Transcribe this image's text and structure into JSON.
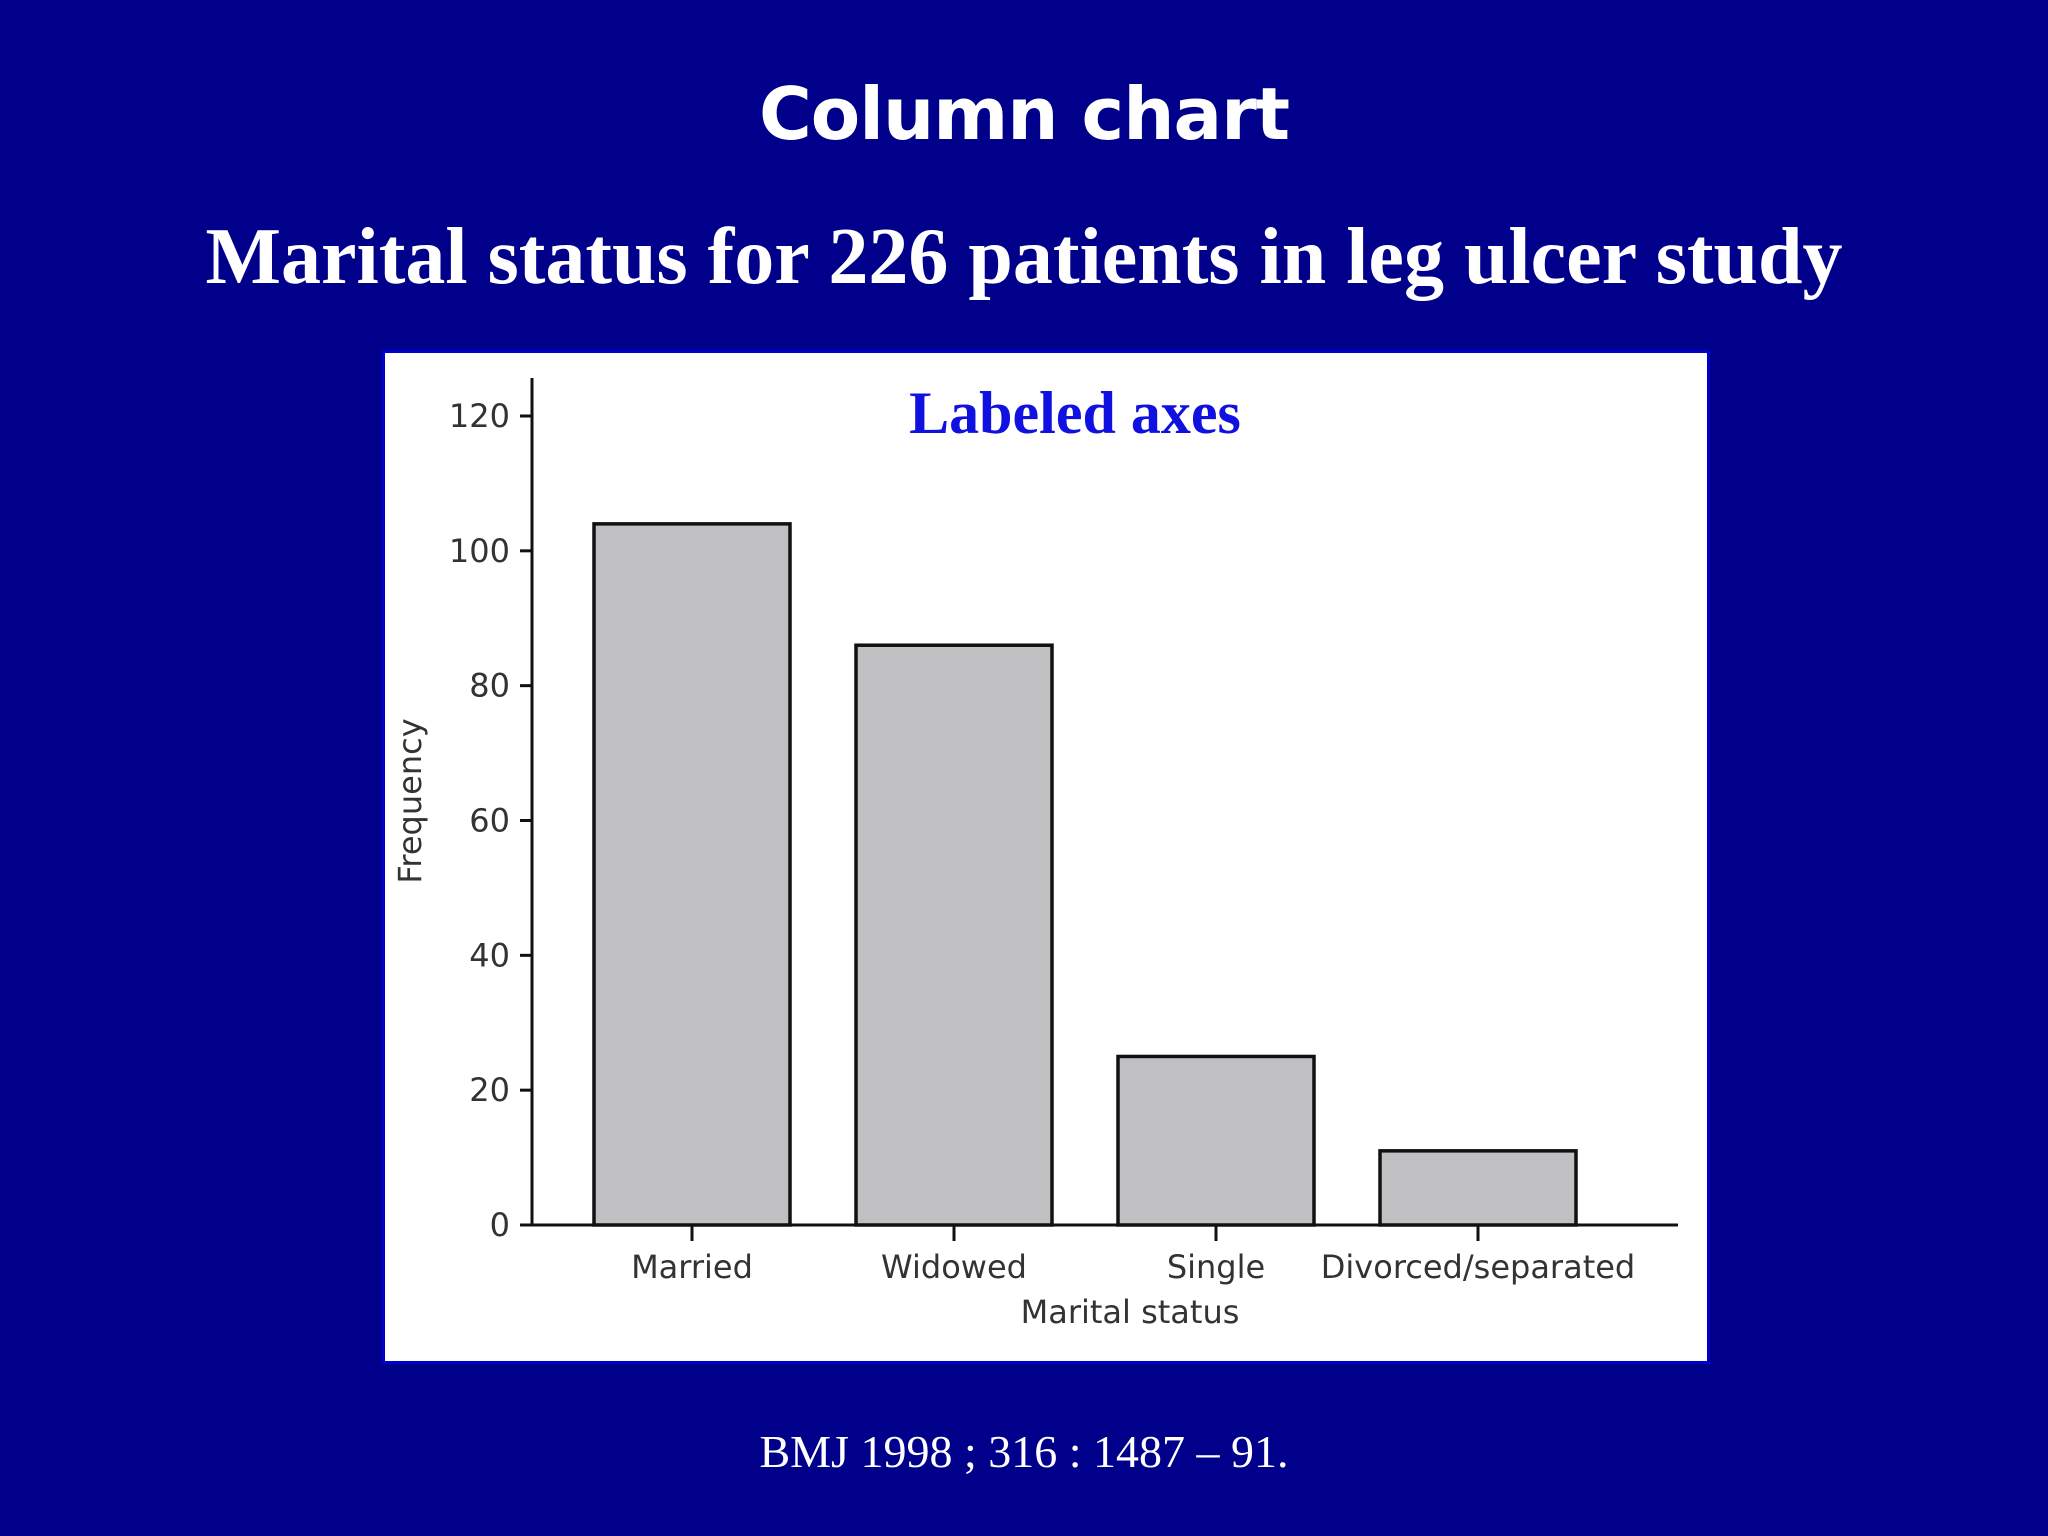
{
  "slide": {
    "title": "Column chart",
    "subtitle": "Marital status for 226 patients in leg ulcer study",
    "citation": "BMJ 1998 ; 316 : 1487 – 91.",
    "background_color": "#00008b",
    "annotation": "Labeled axes",
    "annotation_color": "#1010e0"
  },
  "chart_data": {
    "type": "bar",
    "categories": [
      "Married",
      "Widowed",
      "Single",
      "Divorced/separated"
    ],
    "values": [
      104,
      86,
      25,
      11
    ],
    "xlabel": "Marital status",
    "ylabel": "Frequency",
    "ylim": [
      0,
      120
    ],
    "yticks": [
      "0",
      "20",
      "40",
      "60",
      "80",
      "100",
      "120"
    ],
    "grid": false,
    "bar_color": "#c0bfc1",
    "bar_edge_color": "#111111"
  }
}
